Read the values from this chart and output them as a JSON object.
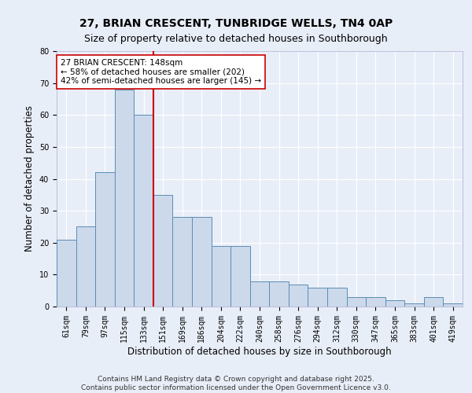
{
  "title1": "27, BRIAN CRESCENT, TUNBRIDGE WELLS, TN4 0AP",
  "title2": "Size of property relative to detached houses in Southborough",
  "xlabel": "Distribution of detached houses by size in Southborough",
  "ylabel": "Number of detached properties",
  "categories": [
    "61sqm",
    "79sqm",
    "97sqm",
    "115sqm",
    "133sqm",
    "151sqm",
    "169sqm",
    "186sqm",
    "204sqm",
    "222sqm",
    "240sqm",
    "258sqm",
    "276sqm",
    "294sqm",
    "312sqm",
    "330sqm",
    "347sqm",
    "365sqm",
    "383sqm",
    "401sqm",
    "419sqm"
  ],
  "values": [
    21,
    25,
    42,
    68,
    60,
    35,
    28,
    28,
    19,
    19,
    8,
    8,
    7,
    6,
    6,
    3,
    3,
    2,
    1,
    3,
    1
  ],
  "bar_color": "#ccd9ea",
  "bar_edge_color": "#5a8db5",
  "vline_x_idx": 5,
  "vline_color": "#cc0000",
  "annotation_text": "27 BRIAN CRESCENT: 148sqm\n← 58% of detached houses are smaller (202)\n42% of semi-detached houses are larger (145) →",
  "annotation_box_facecolor": "#ffffff",
  "annotation_box_edgecolor": "#cc0000",
  "ylim": [
    0,
    80
  ],
  "yticks": [
    0,
    10,
    20,
    30,
    40,
    50,
    60,
    70,
    80
  ],
  "footer": "Contains HM Land Registry data © Crown copyright and database right 2025.\nContains public sector information licensed under the Open Government Licence v3.0.",
  "background_color": "#e8eef8",
  "plot_background": "#e8eef8",
  "grid_color": "#ffffff",
  "title1_fontsize": 10,
  "title2_fontsize": 9,
  "tick_fontsize": 7,
  "label_fontsize": 8.5,
  "footer_fontsize": 6.5
}
